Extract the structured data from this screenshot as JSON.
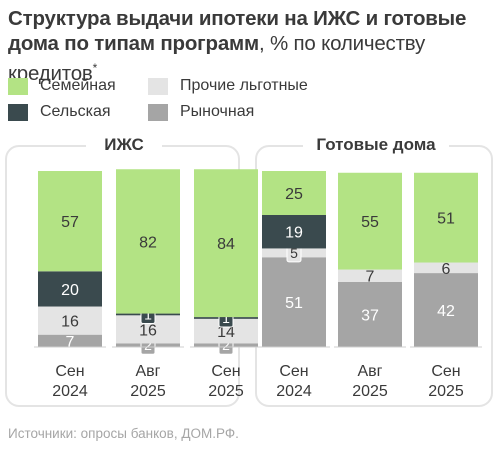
{
  "header": {
    "title_bold": "Структура выдачи ипотеки на ИЖС и готовые дома по типам программ",
    "title_unit": ", % по количеству кредитов",
    "title_footnote": "*"
  },
  "legend": [
    {
      "name": "Семейная",
      "color": "#b3e384"
    },
    {
      "name": "Прочие льготные",
      "color": "#e4e4e4"
    },
    {
      "name": "Сельская",
      "color": "#3a4a4e"
    },
    {
      "name": "Рыночная",
      "color": "#a5a5a5"
    }
  ],
  "source": "Источники: опросы банков, ДОМ.РФ.",
  "chart_data": [
    {
      "type": "bar",
      "stacked": true,
      "title": "ИЖС",
      "categories": [
        [
          "Сен",
          "2024"
        ],
        [
          "Авг",
          "2025"
        ],
        [
          "Сен",
          "2025"
        ]
      ],
      "series": [
        {
          "name": "Рыночная",
          "values": [
            7,
            2,
            2
          ],
          "color": "#a5a5a5",
          "label_color": "#ffffff"
        },
        {
          "name": "Прочие льготные",
          "values": [
            16,
            16,
            14
          ],
          "color": "#e4e4e4",
          "label_color": "#3a3a3a"
        },
        {
          "name": "Сельская",
          "values": [
            20,
            1,
            1
          ],
          "color": "#3a4a4e",
          "label_color": "#ffffff"
        },
        {
          "name": "Семейная",
          "values": [
            57,
            82,
            84
          ],
          "color": "#b3e384",
          "label_color": "#3a3a3a"
        }
      ],
      "ylim": [
        0,
        100
      ]
    },
    {
      "type": "bar",
      "stacked": true,
      "title": "Готовые дома",
      "categories": [
        [
          "Сен",
          "2024"
        ],
        [
          "Авг",
          "2025"
        ],
        [
          "Сен",
          "2025"
        ]
      ],
      "series": [
        {
          "name": "Рыночная",
          "values": [
            51,
            37,
            42
          ],
          "color": "#a5a5a5",
          "label_color": "#ffffff"
        },
        {
          "name": "Прочие льготные",
          "values": [
            5,
            7,
            6
          ],
          "color": "#e4e4e4",
          "label_color": "#3a3a3a"
        },
        {
          "name": "Сельская",
          "values": [
            19,
            0,
            0
          ],
          "color": "#3a4a4e",
          "label_color": "#ffffff"
        },
        {
          "name": "Семейная",
          "values": [
            25,
            55,
            51
          ],
          "color": "#b3e384",
          "label_color": "#3a3a3a"
        }
      ],
      "ylim": [
        0,
        100
      ]
    }
  ]
}
